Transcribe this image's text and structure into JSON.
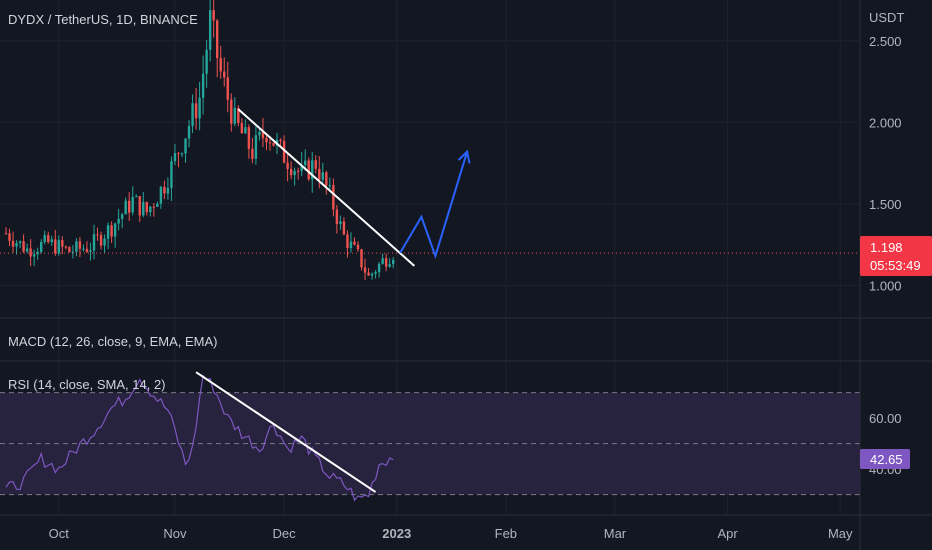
{
  "header": {
    "symbol_title": "DYDX / TetherUS, 1D, BINANCE",
    "price_axis_unit": "USDT"
  },
  "macd": {
    "label": "MACD (12, 26, close, 9, EMA, EMA)"
  },
  "rsi": {
    "label": "RSI (14, close, SMA, 14, 2)"
  },
  "price_axis": {
    "ticks": [
      "2.500",
      "2.000",
      "1.500",
      "1.000"
    ]
  },
  "rsi_axis": {
    "ticks": [
      "60.00",
      "40.00"
    ]
  },
  "time_axis": {
    "ticks": [
      "Oct",
      "Nov",
      "Dec",
      "2023",
      "Feb",
      "Mar",
      "Apr",
      "May"
    ]
  },
  "last_price": {
    "value": "1.198",
    "countdown": "05:53:49"
  },
  "rsi_last": {
    "value": "42.65"
  },
  "colors": {
    "background": "#131722",
    "up": "#26a69a",
    "down": "#ef5350",
    "rsi_line": "#7e57c2",
    "rsi_band": "#2a2440",
    "trendline": "#ffffff",
    "projection": "#2962ff",
    "price_label_bg": "#f23645",
    "rsi_label_bg": "#7e57c2",
    "text": "#b2b5be"
  },
  "chart_data": [
    {
      "type": "candlestick",
      "title": "DYDX / TetherUS, 1D, BINANCE",
      "ylabel": "USDT",
      "ylim": [
        0.8,
        2.75
      ],
      "x_ticks": [
        "Oct",
        "Nov",
        "Dec",
        "2023",
        "Feb",
        "Mar",
        "Apr",
        "May"
      ],
      "y_ticks": [
        1.0,
        1.5,
        2.0,
        2.5
      ],
      "last_price": 1.198,
      "close_path": [
        [
          0,
          1.32
        ],
        [
          6,
          1.22
        ],
        [
          12,
          1.26
        ],
        [
          18,
          1.21
        ],
        [
          24,
          1.24
        ],
        [
          30,
          1.36
        ],
        [
          36,
          1.52
        ],
        [
          40,
          1.45
        ],
        [
          45,
          1.62
        ],
        [
          50,
          1.88
        ],
        [
          55,
          2.15
        ],
        [
          58,
          2.62
        ],
        [
          61,
          2.3
        ],
        [
          65,
          2.0
        ],
        [
          70,
          1.82
        ],
        [
          74,
          1.95
        ],
        [
          78,
          1.82
        ],
        [
          84,
          1.68
        ],
        [
          88,
          1.75
        ],
        [
          92,
          1.55
        ],
        [
          96,
          1.3
        ],
        [
          100,
          1.18
        ],
        [
          103,
          1.05
        ],
        [
          107,
          1.15
        ],
        [
          110,
          1.2
        ]
      ],
      "annotations": {
        "trendline": {
          "from": [
            66,
            2.08
          ],
          "to": [
            116,
            1.12
          ]
        },
        "projection_path": [
          [
            112,
            1.2
          ],
          [
            118,
            1.42
          ],
          [
            122,
            1.18
          ],
          [
            131,
            1.82
          ]
        ]
      }
    },
    {
      "type": "line",
      "title": "RSI (14, close, SMA, 14, 2)",
      "ylim": [
        22,
        82
      ],
      "y_ticks": [
        40,
        60
      ],
      "bands": [
        70,
        30
      ],
      "last_value": 42.65,
      "series": [
        {
          "points": [
            [
              0,
              32
            ],
            [
              5,
              35
            ],
            [
              10,
              44
            ],
            [
              15,
              40
            ],
            [
              20,
              48
            ],
            [
              25,
              55
            ],
            [
              30,
              64
            ],
            [
              34,
              68
            ],
            [
              38,
              76
            ],
            [
              42,
              69
            ],
            [
              46,
              63
            ],
            [
              48,
              55
            ],
            [
              51,
              42
            ],
            [
              53,
              48
            ],
            [
              56,
              77
            ],
            [
              59,
              72
            ],
            [
              63,
              60
            ],
            [
              67,
              54
            ],
            [
              72,
              48
            ],
            [
              76,
              58
            ],
            [
              80,
              48
            ],
            [
              84,
              52
            ],
            [
              88,
              44
            ],
            [
              92,
              37
            ],
            [
              96,
              34
            ],
            [
              100,
              28
            ],
            [
              103,
              30
            ],
            [
              106,
              42
            ],
            [
              110,
              45
            ]
          ]
        }
      ],
      "annotations": {
        "trendline": {
          "from": [
            54,
            78
          ],
          "to": [
            105,
            31
          ]
        }
      }
    }
  ]
}
